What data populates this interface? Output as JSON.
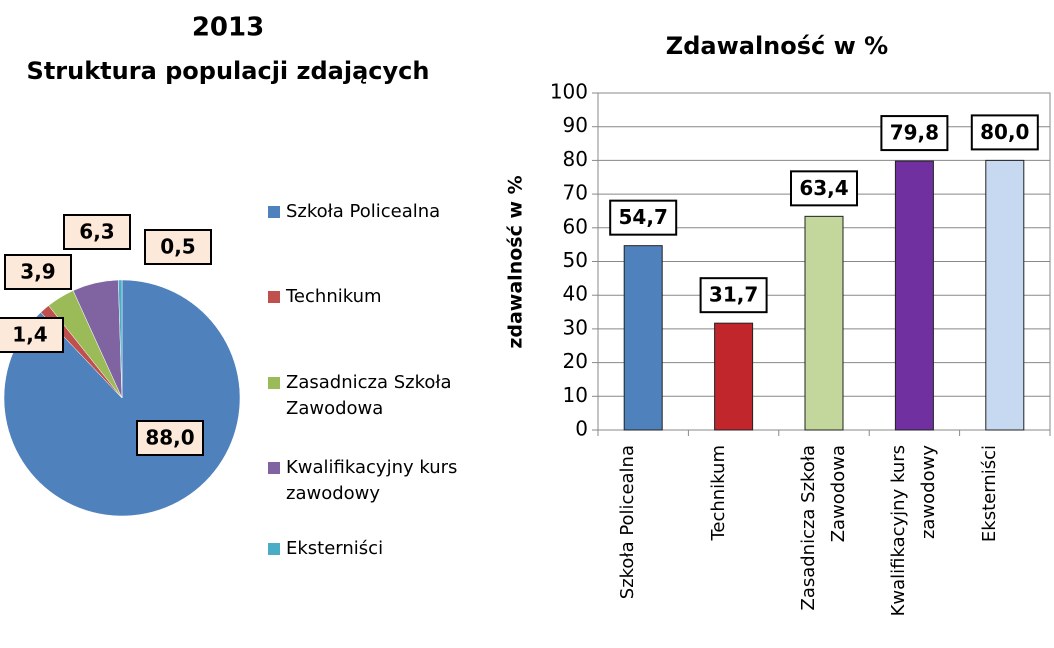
{
  "chart_data": [
    {
      "type": "pie",
      "title": "2013",
      "subtitle": "Struktura populacji zdających",
      "categories": [
        "Szkoła Policealna",
        "Technikum",
        "Zasadnicza Szkoła Zawodowa",
        "Kwalifikacyjny kurs zawodowy",
        "Eksterniści"
      ],
      "values": [
        88.0,
        1.4,
        3.9,
        6.3,
        0.5
      ],
      "value_labels": [
        "88,0",
        "1,4",
        "3,9",
        "6,3",
        "0,5"
      ],
      "colors": [
        "#4f81bd",
        "#c0504d",
        "#9bbb59",
        "#8064a2",
        "#4bacc6"
      ],
      "legend": "right"
    },
    {
      "type": "bar",
      "title": "Zdawalność w %",
      "ylabel": "zdawalność w %",
      "categories": [
        "Szkoła Policealna",
        "Technikum",
        "Zasadnicza Szkoła Zawodowa",
        "Kwalifikacyjny kurs zawodowy",
        "Eksterniści"
      ],
      "values": [
        54.7,
        31.7,
        63.4,
        79.8,
        80.0
      ],
      "value_labels": [
        "54,7",
        "31,7",
        "63,4",
        "79,8",
        "80,0"
      ],
      "colors": [
        "#4f81bd",
        "#c0262b",
        "#c3d69b",
        "#7030a0",
        "#c6d9f1"
      ],
      "ylim": [
        0,
        100
      ],
      "yticks": [
        0,
        10,
        20,
        30,
        40,
        50,
        60,
        70,
        80,
        90,
        100
      ],
      "grid": true
    }
  ]
}
